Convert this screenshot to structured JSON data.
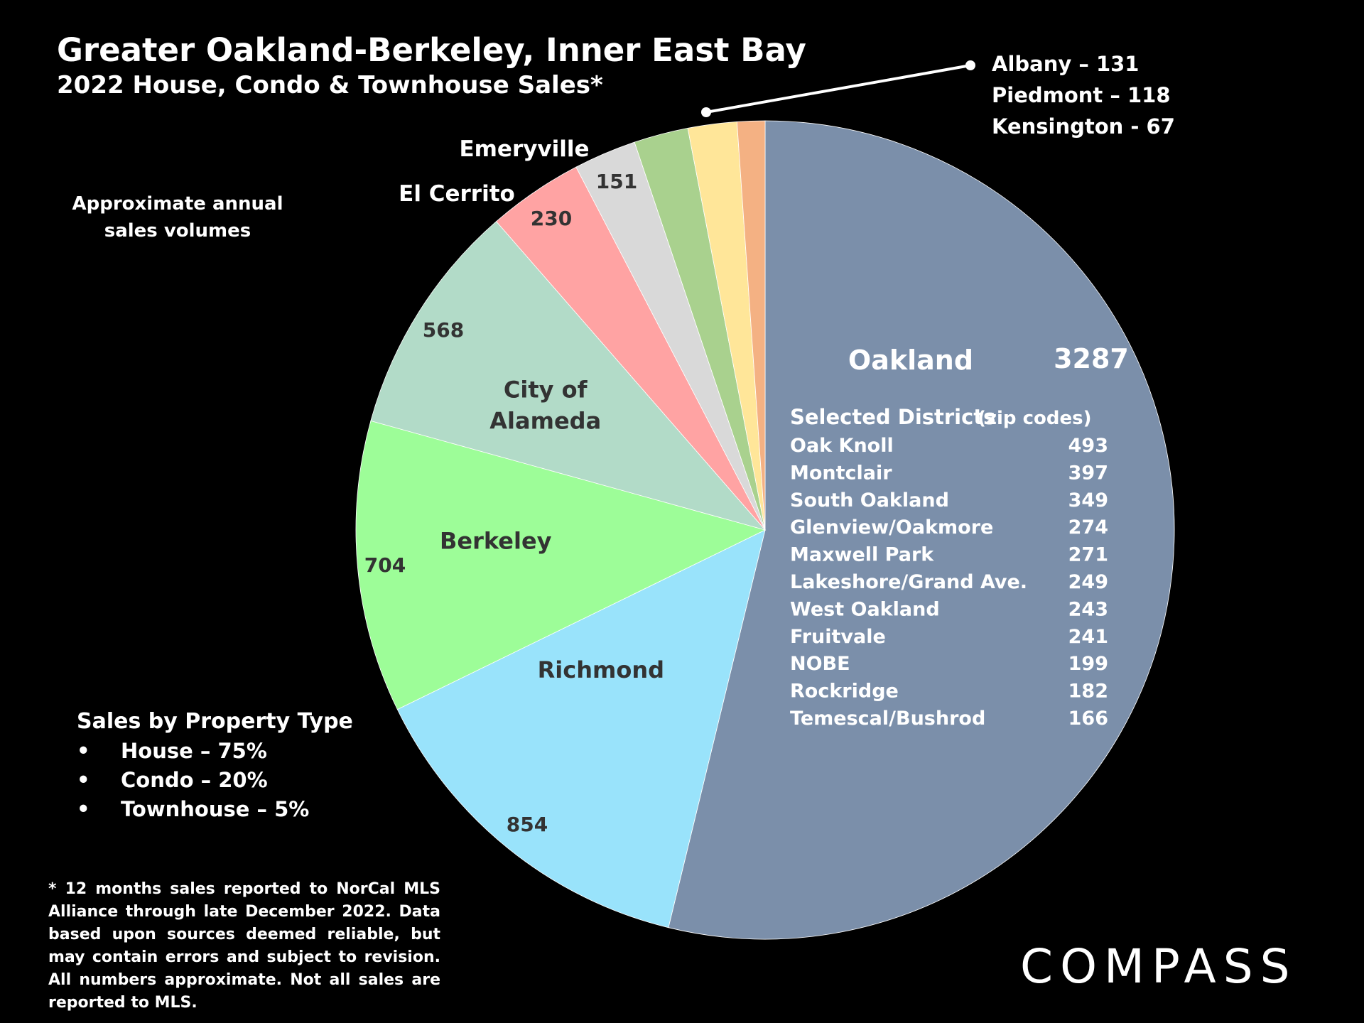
{
  "chart_data": {
    "type": "pie",
    "title": "Greater Oakland-Berkeley, Inner East Bay",
    "subtitle": "2022 House, Condo & Townhouse Sales*",
    "annotation": "Approximate annual sales volumes",
    "slices": [
      {
        "label": "Oakland",
        "value": 3287,
        "color": "#7b8faa"
      },
      {
        "label": "Richmond",
        "value": 854,
        "color": "#99e3fb"
      },
      {
        "label": "Berkeley",
        "value": 704,
        "color": "#9dfd98"
      },
      {
        "label": "City of Alameda",
        "value": 568,
        "color": "#b2dbc8"
      },
      {
        "label": "El Cerrito",
        "value": 230,
        "color": "#ffa3a3"
      },
      {
        "label": "Emeryville",
        "value": 151,
        "color": "#d9d9d9"
      },
      {
        "label": "Albany",
        "value": 131,
        "color": "#a9d18e"
      },
      {
        "label": "Piedmont",
        "value": 118,
        "color": "#ffe699"
      },
      {
        "label": "Kensington",
        "value": 67,
        "color": "#f4b183"
      }
    ],
    "small_slices_callout": [
      "Albany – 131",
      "Piedmont – 118",
      "Kensington - 67"
    ],
    "oakland_districts": {
      "heading": "Selected Districts",
      "heading_note": "(zip codes)",
      "rows": [
        {
          "name": "Oak Knoll",
          "value": 493
        },
        {
          "name": "Montclair",
          "value": 397
        },
        {
          "name": "South Oakland",
          "value": 349
        },
        {
          "name": "Glenview/Oakmore",
          "value": 274
        },
        {
          "name": "Maxwell Park",
          "value": 271
        },
        {
          "name": "Lakeshore/Grand Ave.",
          "value": 249
        },
        {
          "name": "West Oakland",
          "value": 243
        },
        {
          "name": "Fruitvale",
          "value": 241
        },
        {
          "name": "NOBE",
          "value": 199
        },
        {
          "name": "Rockridge",
          "value": 182
        },
        {
          "name": "Temescal/Bushrod",
          "value": 166
        }
      ]
    }
  },
  "property_type": {
    "title": "Sales by Property Type",
    "items": [
      "House – 75%",
      "Condo – 20%",
      "Townhouse – 5%"
    ]
  },
  "footnote": "* 12 months sales reported to NorCal MLS Alliance through late December 2022. Data based upon sources deemed reliable, but may contain errors and subject to revision. All numbers approximate. Not all sales are reported to MLS.",
  "logo_text": "COMPASS"
}
